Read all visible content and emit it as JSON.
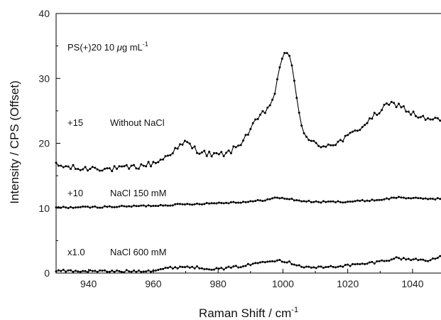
{
  "chart_data": {
    "type": "line",
    "xlabel": "Raman Shift / cm",
    "xlabel_sup": "-1",
    "ylabel": "Intensity / CPS (Offset)",
    "xlim": [
      930,
      1049
    ],
    "ylim": [
      0,
      40
    ],
    "x_ticks": [
      "940",
      "960",
      "980",
      "1000",
      "1020",
      "1040"
    ],
    "y_ticks": [
      "0",
      "10",
      "20",
      "30",
      "40"
    ],
    "grid": false,
    "legend": "none",
    "annotations": {
      "title": "PS(+)20 10 ",
      "title_mu": "μ",
      "title_rest": "g mL",
      "title_sup": "-1",
      "offset_15": "+15",
      "label_15": "Without NaCl",
      "offset_10": "+10",
      "label_10": "NaCl 150 mM",
      "offset_1": "x1.0",
      "label_1": "NaCl 600 mM"
    },
    "series": [
      {
        "label": "Without NaCl",
        "knots": [
          [
            930,
            16.6
          ],
          [
            934,
            16.3
          ],
          [
            938,
            16.0
          ],
          [
            942,
            16.3
          ],
          [
            946,
            16.0
          ],
          [
            950,
            16.1
          ],
          [
            955,
            16.4
          ],
          [
            960,
            16.9
          ],
          [
            963,
            17.6
          ],
          [
            966,
            18.8
          ],
          [
            969,
            19.7
          ],
          [
            970,
            20.3
          ],
          [
            972,
            19.4
          ],
          [
            974,
            18.8
          ],
          [
            976,
            18.5
          ],
          [
            978,
            18.2
          ],
          [
            980,
            18.2
          ],
          [
            983,
            18.5
          ],
          [
            986,
            19.5
          ],
          [
            989,
            21.4
          ],
          [
            992,
            23.6
          ],
          [
            995,
            25.2
          ],
          [
            997,
            26.8
          ],
          [
            998.5,
            30.0
          ],
          [
            1000,
            33.8
          ],
          [
            1001,
            34.3
          ],
          [
            1002,
            33.6
          ],
          [
            1003,
            31.0
          ],
          [
            1004,
            27.6
          ],
          [
            1005,
            24.6
          ],
          [
            1006,
            22.4
          ],
          [
            1008,
            20.4
          ],
          [
            1011,
            19.6
          ],
          [
            1014,
            19.8
          ],
          [
            1017,
            20.1
          ],
          [
            1020,
            21.0
          ],
          [
            1023,
            22.1
          ],
          [
            1026,
            23.2
          ],
          [
            1029,
            24.6
          ],
          [
            1032,
            25.8
          ],
          [
            1034,
            26.1
          ],
          [
            1036,
            25.9
          ],
          [
            1039,
            24.8
          ],
          [
            1042,
            24.1
          ],
          [
            1045,
            23.6
          ],
          [
            1049,
            23.6
          ]
        ],
        "noise": 0.45
      },
      {
        "label": "NaCl 150 mM",
        "knots": [
          [
            930,
            10.1
          ],
          [
            940,
            10.15
          ],
          [
            950,
            10.25
          ],
          [
            960,
            10.4
          ],
          [
            970,
            10.6
          ],
          [
            980,
            10.8
          ],
          [
            990,
            11.0
          ],
          [
            995,
            11.3
          ],
          [
            998,
            11.6
          ],
          [
            1001,
            11.5
          ],
          [
            1005,
            11.15
          ],
          [
            1010,
            10.95
          ],
          [
            1020,
            11.0
          ],
          [
            1030,
            11.3
          ],
          [
            1036,
            11.7
          ],
          [
            1040,
            11.5
          ],
          [
            1049,
            11.45
          ]
        ],
        "noise": 0.12
      },
      {
        "label": "NaCl 600 mM",
        "knots": [
          [
            930,
            0.35
          ],
          [
            940,
            0.3
          ],
          [
            950,
            0.25
          ],
          [
            960,
            0.4
          ],
          [
            965,
            0.8
          ],
          [
            970,
            1.0
          ],
          [
            975,
            0.8
          ],
          [
            980,
            0.6
          ],
          [
            985,
            0.9
          ],
          [
            990,
            1.3
          ],
          [
            995,
            1.9
          ],
          [
            999,
            2.0
          ],
          [
            1003,
            1.5
          ],
          [
            1007,
            0.9
          ],
          [
            1012,
            0.85
          ],
          [
            1018,
            1.1
          ],
          [
            1025,
            1.4
          ],
          [
            1030,
            1.8
          ],
          [
            1035,
            2.3
          ],
          [
            1040,
            2.1
          ],
          [
            1045,
            2.0
          ],
          [
            1049,
            2.5
          ]
        ],
        "noise": 0.18
      }
    ]
  }
}
